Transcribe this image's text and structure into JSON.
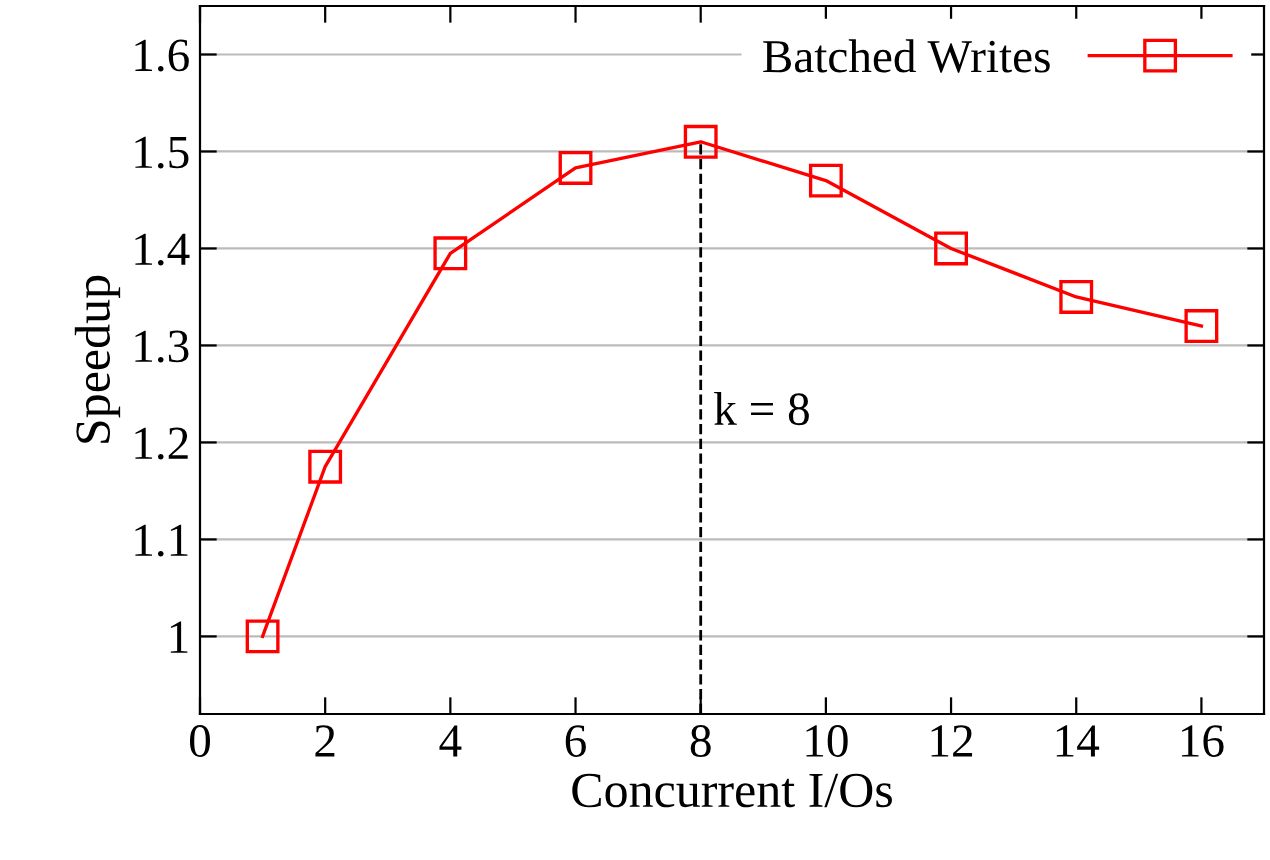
{
  "chart_data": {
    "type": "line",
    "xlabel": "Concurrent I/Os",
    "ylabel": "Speedup",
    "x": [
      1,
      2,
      4,
      6,
      8,
      10,
      12,
      14,
      16
    ],
    "series": [
      {
        "name": "Batched Writes",
        "color": "#ff0000",
        "values": [
          1.0,
          1.175,
          1.395,
          1.483,
          1.51,
          1.47,
          1.4,
          1.35,
          1.32
        ]
      }
    ],
    "xlim": [
      0,
      17
    ],
    "xticks": [
      0,
      2,
      4,
      6,
      8,
      10,
      12,
      14,
      16
    ],
    "ylim": [
      0.92,
      1.65
    ],
    "yticks": [
      1,
      1.1,
      1.2,
      1.3,
      1.4,
      1.5,
      1.6
    ],
    "ref_lines": [
      {
        "axis": "x",
        "value": 8,
        "label": "k = 8",
        "color": "#000000",
        "line_style": "dashed"
      }
    ],
    "grid": "y",
    "legend": "top right",
    "marker": "square",
    "line_style": "solid"
  }
}
